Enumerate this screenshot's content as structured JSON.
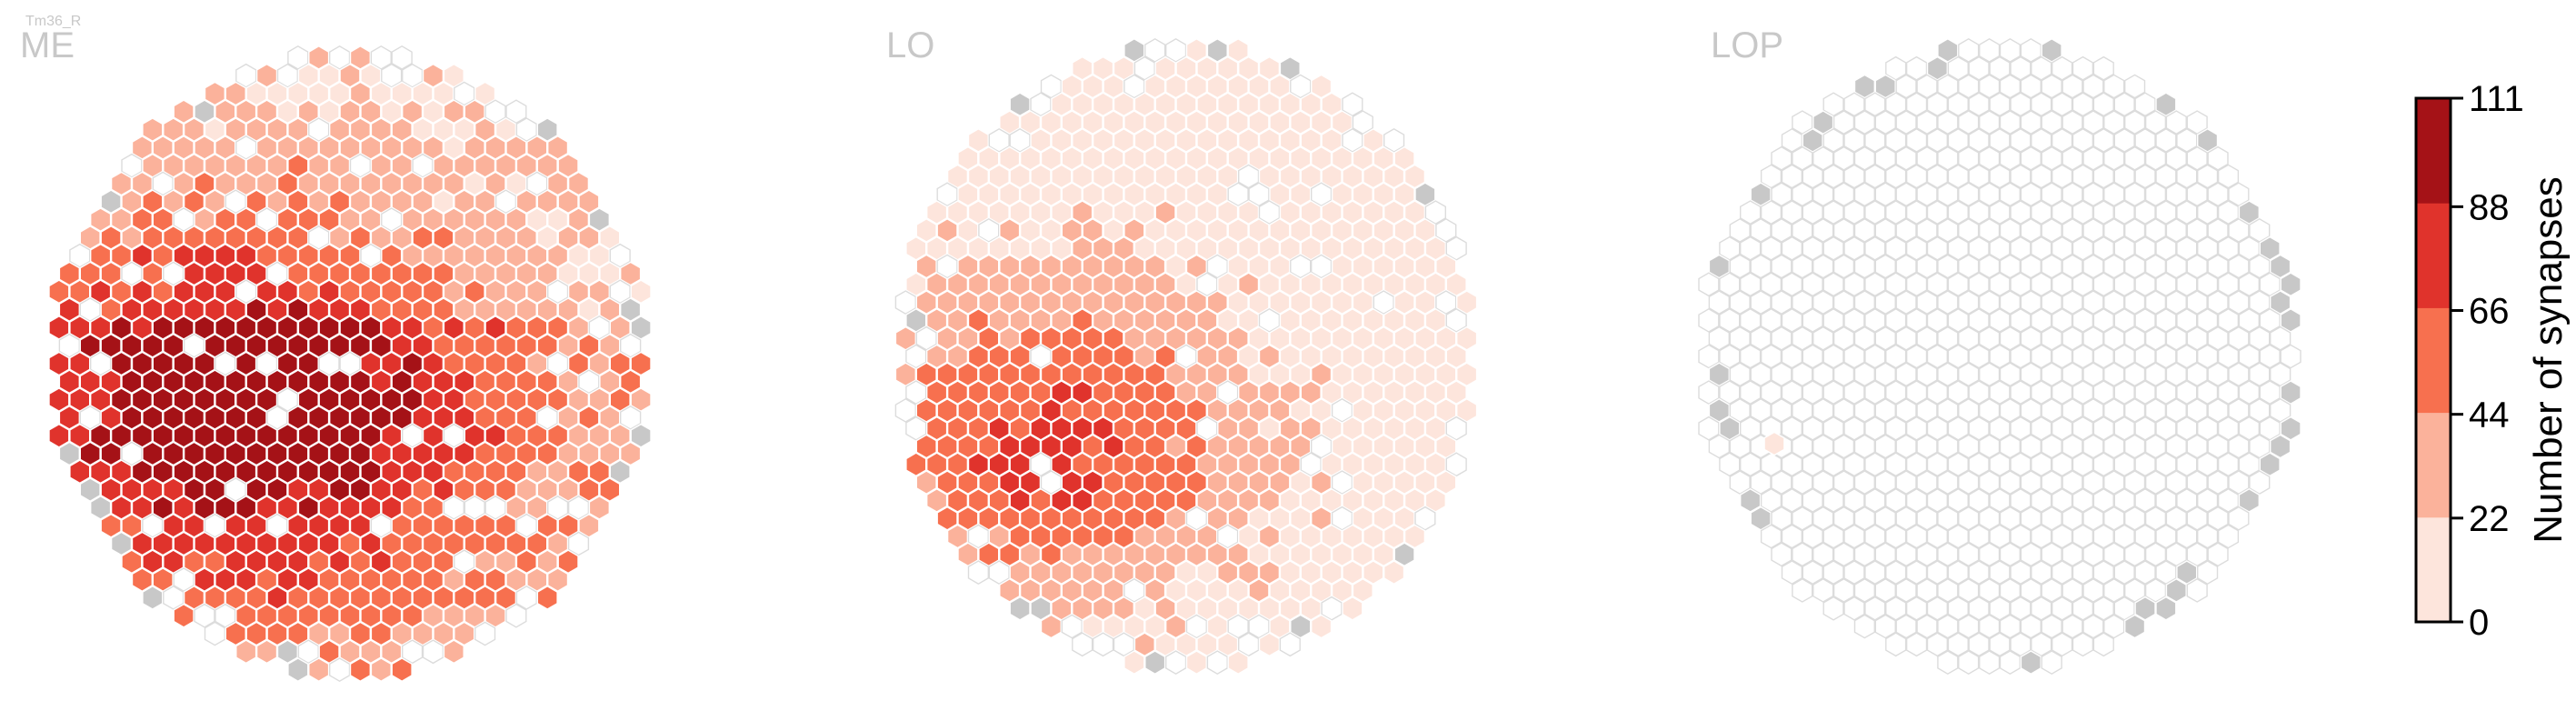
{
  "chart_data": {
    "type": "heatmap",
    "subtype": "hexagonal column map",
    "cell_type_label": "Tm36_R",
    "panels": [
      {
        "name": "ME",
        "occupancy": "dense",
        "max_synapses": 111
      },
      {
        "name": "LO",
        "occupancy": "medium",
        "max_synapses": 80
      },
      {
        "name": "LOP",
        "occupancy": "sparse",
        "max_synapses": 10
      }
    ],
    "colorbar": {
      "label": "Number of synapses",
      "ticks": [
        0,
        22,
        44,
        66,
        88,
        111
      ],
      "range": [
        0,
        111
      ],
      "colors": [
        "#fde5dc",
        "#fbb29b",
        "#f7704f",
        "#e0332c",
        "#a51217"
      ]
    },
    "colors": {
      "empty_hex_stroke": "#dcdcdc",
      "missing_column_fill": "#c8c8c8",
      "title_color": "#c8c8c8"
    }
  }
}
